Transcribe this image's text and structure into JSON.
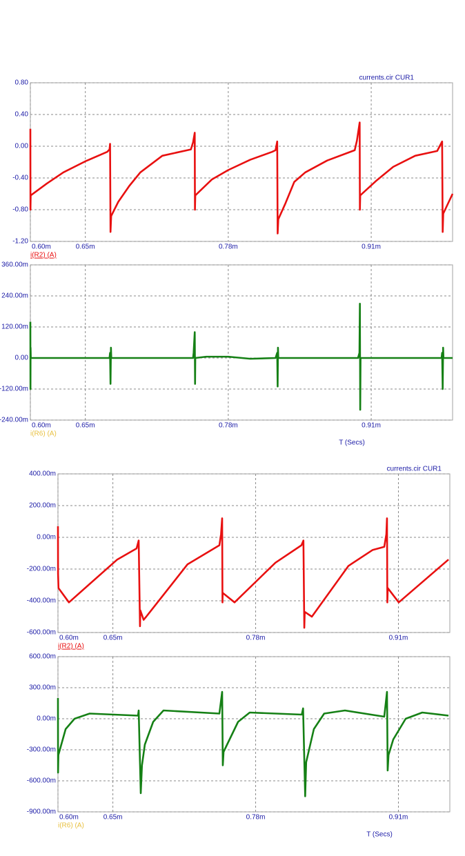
{
  "chart_data": [
    {
      "type": "line",
      "title": "currents.cir CUR1",
      "xlim": [
        0.0006,
        0.000984
      ],
      "ylim": [
        -1.2,
        0.8
      ],
      "xticks": [
        {
          "value": 0.0006,
          "label": "0.60m"
        },
        {
          "value": 0.00065,
          "label": "0.65m"
        },
        {
          "value": 0.00078,
          "label": "0.78m"
        },
        {
          "value": 0.00091,
          "label": "0.91m"
        }
      ],
      "yticks": [
        {
          "value": 0.8,
          "label": "0.80"
        },
        {
          "value": 0.4,
          "label": "0.40"
        },
        {
          "value": 0,
          "label": "0.00"
        },
        {
          "value": -0.4,
          "label": "-0.40"
        },
        {
          "value": -0.8,
          "label": "-0.80"
        },
        {
          "value": -1.2,
          "label": "-1.20"
        }
      ],
      "grid": true,
      "series": [
        {
          "name": "i(R2) (A)",
          "color": "#e81010",
          "legend_color": "#e81010",
          "x": [
            0.0006,
            0.0006001,
            0.0006003,
            0.000615,
            0.00063,
            0.00065,
            0.00067,
            0.000672,
            0.0006725,
            0.0006729,
            0.0006735,
            0.00068,
            0.00069,
            0.0007,
            0.00072,
            0.000746,
            0.000748,
            0.0007495,
            0.0007497,
            0.00075,
            0.000765,
            0.00078,
            0.0008,
            0.00082,
            0.000823,
            0.0008245,
            0.0008249,
            0.0008255,
            0.000832,
            0.00084,
            0.00085,
            0.00087,
            0.000895,
            0.000897,
            0.0008995,
            0.0008997,
            0.0009,
            0.000915,
            0.00093,
            0.00095,
            0.00097,
            0.0009745,
            0.000975,
            0.0009755,
            0.000984
          ],
          "values": [
            0.22,
            -0.8,
            -0.62,
            -0.47,
            -0.33,
            -0.19,
            -0.07,
            -0.04,
            0.03,
            -1.08,
            -0.88,
            -0.7,
            -0.5,
            -0.33,
            -0.12,
            -0.04,
            0.05,
            0.17,
            -0.8,
            -0.62,
            -0.42,
            -0.3,
            -0.17,
            -0.07,
            -0.05,
            0.06,
            -1.1,
            -0.92,
            -0.72,
            -0.45,
            -0.33,
            -0.18,
            -0.05,
            0.07,
            0.3,
            -0.8,
            -0.62,
            -0.43,
            -0.26,
            -0.12,
            -0.06,
            0.06,
            -1.08,
            -0.85,
            -0.6
          ]
        }
      ]
    },
    {
      "type": "line",
      "x_label": "T (Secs)",
      "xlim": [
        0.0006,
        0.000984
      ],
      "ylim": [
        -0.24,
        0.36
      ],
      "xticks": [
        {
          "value": 0.0006,
          "label": "0.60m"
        },
        {
          "value": 0.00065,
          "label": "0.65m"
        },
        {
          "value": 0.00078,
          "label": "0.78m"
        },
        {
          "value": 0.00091,
          "label": "0.91m"
        }
      ],
      "yticks": [
        {
          "value": 0.36,
          "label": "360.00m"
        },
        {
          "value": 0.24,
          "label": "240.00m"
        },
        {
          "value": 0.12,
          "label": "120.00m"
        },
        {
          "value": 0,
          "label": "0.00"
        },
        {
          "value": -0.12,
          "label": "-120.00m"
        },
        {
          "value": -0.24,
          "label": "-240.00m"
        }
      ],
      "grid": true,
      "series": [
        {
          "name": "i(R6) (A)",
          "color": "#158015",
          "legend_color": "#e8c040",
          "x": [
            0.0006,
            0.0006001,
            0.0006002,
            0.0006004,
            0.000672,
            0.0006725,
            0.0006729,
            0.0006733,
            0.0006736,
            0.000748,
            0.0007485,
            0.0007495,
            0.0007498,
            0.00075,
            0.00076,
            0.00078,
            0.0008,
            0.000823,
            0.0008245,
            0.0008249,
            0.0008252,
            0.0008255,
            0.000898,
            0.0008993,
            0.0008997,
            0.0009,
            0.0009003,
            0.000974,
            0.0009745,
            0.000975,
            0.0009754,
            0.0009757,
            0.000984
          ],
          "values": [
            0.14,
            -0.12,
            0.04,
            0,
            0,
            0.02,
            -0.1,
            0.04,
            0,
            0,
            0.02,
            0.1,
            -0.1,
            0,
            0.005,
            0.005,
            -0.003,
            0,
            0.02,
            -0.11,
            0.04,
            0,
            0,
            0.02,
            0.21,
            -0.2,
            0,
            0,
            0.02,
            -0.12,
            0.04,
            0,
            0
          ]
        }
      ]
    },
    {
      "type": "line",
      "title": "currents.cir CUR1",
      "xlim": [
        0.0006,
        0.0009568
      ],
      "ylim": [
        -0.6,
        0.4
      ],
      "xticks": [
        {
          "value": 0.0006,
          "label": "0.60m"
        },
        {
          "value": 0.00065,
          "label": "0.65m"
        },
        {
          "value": 0.00078,
          "label": "0.78m"
        },
        {
          "value": 0.00091,
          "label": "0.91m"
        }
      ],
      "yticks": [
        {
          "value": 0.4,
          "label": "400.00m"
        },
        {
          "value": 0.2,
          "label": "200.00m"
        },
        {
          "value": 0,
          "label": "0.00m"
        },
        {
          "value": -0.2,
          "label": "-200.00m"
        },
        {
          "value": -0.4,
          "label": "-400.00m"
        },
        {
          "value": -0.6,
          "label": "-600.00m"
        }
      ],
      "grid": true,
      "series": [
        {
          "name": "i(R2) (A)",
          "color": "#e81010",
          "legend_color": "#e81010",
          "x": [
            0.0006,
            0.0006001,
            0.0006005,
            0.00061,
            0.000654,
            0.0006716,
            0.0006735,
            0.0006747,
            0.000675,
            0.000678,
            0.0006804,
            0.000718,
            0.000747,
            0.0007485,
            0.0007495,
            0.0007498,
            0.00075,
            0.0007608,
            0.000798,
            0.0008217,
            0.0008235,
            0.0008243,
            0.0008247,
            0.0008312,
            0.0008645,
            0.0008864,
            0.0008971,
            0.000899,
            0.0008996,
            0.0008999,
            0.0009003,
            0.0009103,
            0.0009556
          ],
          "values": [
            0.07,
            -0.23,
            -0.32,
            -0.41,
            -0.14,
            -0.07,
            -0.02,
            -0.56,
            -0.46,
            -0.52,
            -0.5,
            -0.17,
            -0.05,
            0.02,
            0.12,
            -0.41,
            -0.35,
            -0.41,
            -0.16,
            -0.05,
            -0.02,
            -0.57,
            -0.47,
            -0.5,
            -0.18,
            -0.08,
            -0.06,
            0.02,
            0.12,
            -0.41,
            -0.32,
            -0.41,
            -0.14
          ]
        }
      ]
    },
    {
      "type": "line",
      "x_label": "T (Secs)",
      "xlim": [
        0.0006,
        0.0009568
      ],
      "ylim": [
        -0.9,
        0.6
      ],
      "xticks": [
        {
          "value": 0.0006,
          "label": "0.60m"
        },
        {
          "value": 0.00065,
          "label": "0.65m"
        },
        {
          "value": 0.00078,
          "label": "0.78m"
        },
        {
          "value": 0.00091,
          "label": "0.91m"
        }
      ],
      "yticks": [
        {
          "value": 0.6,
          "label": "600.00m"
        },
        {
          "value": 0.3,
          "label": "300.00m"
        },
        {
          "value": 0,
          "label": "0.00m"
        },
        {
          "value": -0.3,
          "label": "-300.00m"
        },
        {
          "value": -0.6,
          "label": "-600.00m"
        },
        {
          "value": -0.9,
          "label": "-900.00m"
        }
      ],
      "grid": true,
      "series": [
        {
          "name": "i(R6) (A)",
          "color": "#158015",
          "legend_color": "#e8c040",
          "x": [
            0.0006,
            0.0006001,
            0.0006004,
            0.000607,
            0.0006151,
            0.0006289,
            0.0006729,
            0.0006735,
            0.0006754,
            0.0006765,
            0.0006791,
            0.0006867,
            0.0006961,
            0.000747,
            0.0007495,
            0.0007501,
            0.0007508,
            0.000764,
            0.0007746,
            0.000822,
            0.0008232,
            0.0008251,
            0.000826,
            0.000833,
            0.0008424,
            0.0008613,
            0.0008971,
            0.0008996,
            0.0009002,
            0.000901,
            0.0009053,
            0.0009166,
            0.0009317,
            0.0009556
          ],
          "values": [
            0.2,
            -0.52,
            -0.35,
            -0.1,
            0,
            0.05,
            0.03,
            0.08,
            -0.72,
            -0.45,
            -0.25,
            -0.03,
            0.08,
            0.05,
            0.26,
            -0.45,
            -0.32,
            -0.03,
            0.06,
            0.04,
            0.1,
            -0.75,
            -0.42,
            -0.1,
            0.05,
            0.08,
            0.02,
            0.26,
            -0.5,
            -0.35,
            -0.2,
            0,
            0.06,
            0.03
          ]
        }
      ]
    }
  ]
}
